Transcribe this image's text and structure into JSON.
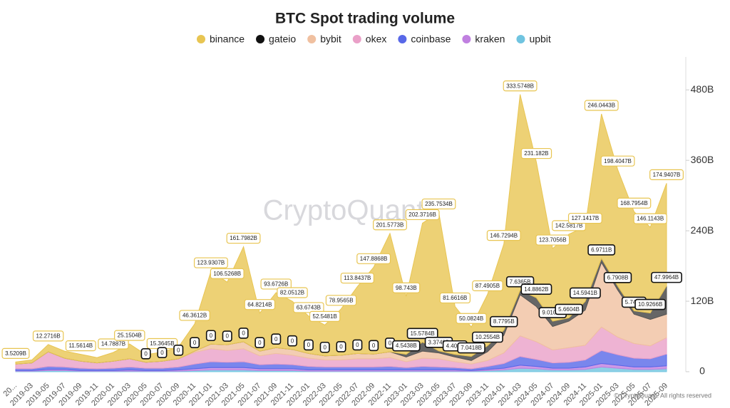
{
  "chart_data": {
    "type": "stacked-area",
    "title": "BTC Spot trading volume",
    "watermark": "CryptoQuant",
    "copyright": "© CryptoQuant. All rights reserved",
    "categories": [
      "20...",
      "2019-03",
      "2019-05",
      "2019-07",
      "2019-09",
      "2019-11",
      "2020-01",
      "2020-03",
      "2020-05",
      "2020-07",
      "2020-09",
      "2020-11",
      "2021-01",
      "2021-03",
      "2021-05",
      "2021-07",
      "2021-09",
      "2021-11",
      "2022-01",
      "2022-03",
      "2022-05",
      "2022-07",
      "2022-09",
      "2022-11",
      "2023-01",
      "2023-03",
      "2023-05",
      "2023-07",
      "2023-09",
      "2023-11",
      "2024-01",
      "2024-03",
      "2024-05",
      "2024-07",
      "2024-09",
      "2024-11",
      "2025-01",
      "2025-03",
      "2025-05",
      "2025-07",
      "2025-09"
    ],
    "ylim": [
      0,
      530
    ],
    "yticks": [
      0,
      {
        "value": 120,
        "label": "120B"
      },
      {
        "value": 240,
        "label": "240B"
      },
      {
        "value": 360,
        "label": "360B"
      },
      {
        "value": 480,
        "label": "480B"
      }
    ],
    "grid": false,
    "legend": "top",
    "series": [
      {
        "name": "binance",
        "color": "#e8c552",
        "values": [
          3.5209,
          5,
          12.2716,
          12,
          11.5614,
          9,
          14.7887,
          25.1504,
          13,
          15.3645,
          20,
          46.3612,
          123.9307,
          106.5268,
          161.7982,
          64.8214,
          93.6726,
          82.0512,
          63.6743,
          52.5481,
          78.9565,
          113.8437,
          147.8868,
          201.5773,
          98.743,
          202.3716,
          235.7534,
          81.6616,
          50.0824,
          87.4905,
          146.7294,
          333.5748,
          231.182,
          123.7056,
          142.5817,
          127.1417,
          246.0443,
          198.4047,
          168.7954,
          146.1143,
          174.9407
        ],
        "value_labels": [
          "3.5209B",
          null,
          "12.2716B",
          null,
          "11.5614B",
          null,
          "14.7887B",
          "25.1504B",
          null,
          "15.3645B",
          null,
          "46.3612B",
          "123.9307B",
          "106.5268B",
          "161.7982B",
          "64.8214B",
          "93.6726B",
          "82.0512B",
          "63.6743B",
          "52.5481B",
          "78.9565B",
          "113.8437B",
          "147.8868B",
          "201.5773B",
          "98.743B",
          "202.3716B",
          "235.7534B",
          "81.6616B",
          "50.0824B",
          "87.4905B",
          "146.7294B",
          "333.5748B",
          "231.182B",
          "123.7056B",
          "142.5817B",
          "127.1417B",
          "246.0443B",
          "198.4047B",
          "168.7954B",
          "146.1143B",
          "174.9407B"
        ]
      },
      {
        "name": "gateio",
        "color": "#111111",
        "values": [
          0,
          0,
          0,
          0,
          0,
          0,
          0,
          0,
          0,
          0,
          0,
          0,
          0,
          0,
          0,
          0,
          0,
          0,
          0,
          0,
          0,
          0,
          0,
          0,
          4.5438,
          15.5784,
          3.3749,
          4.406,
          7.0418,
          10.2554,
          8.7795,
          7.6365,
          14.8862,
          9.0104,
          5.6604,
          14.5941,
          6.9711,
          6.7908,
          5.747,
          10.9266,
          47.9964
        ],
        "value_labels": [
          null,
          null,
          null,
          null,
          null,
          null,
          null,
          null,
          "0",
          "0",
          "0",
          "0",
          "0",
          "0",
          "0",
          "0",
          "0",
          "0",
          "0",
          "0",
          "0",
          "0",
          "0",
          "0",
          "4.5438B",
          "15.5784B",
          "3.3749B",
          "4.406B",
          "7.0418B",
          "10.2554B",
          "8.7795B",
          "7.6365B",
          "14.8862B",
          "9.0104B",
          "5.6604B",
          "14.5941B",
          "6.9711B",
          "6.7908B",
          "5.747B",
          "10.9266B",
          "47.9964B"
        ]
      },
      {
        "name": "bybit",
        "color": "#f0c0a0",
        "values": [
          0,
          0,
          0,
          0,
          0,
          0,
          0,
          0,
          0,
          0,
          0,
          2,
          8,
          10,
          12,
          8,
          10,
          10,
          8,
          7,
          8,
          9,
          8,
          10,
          8,
          12,
          10,
          8,
          6,
          15,
          30,
          70,
          60,
          40,
          45,
          60,
          110,
          80,
          50,
          45,
          40
        ]
      },
      {
        "name": "okex",
        "color": "#eaa0c8",
        "values": [
          8,
          10,
          25,
          15,
          12,
          10,
          12,
          14,
          10,
          12,
          14,
          20,
          22,
          20,
          22,
          15,
          18,
          16,
          14,
          12,
          12,
          14,
          14,
          15,
          10,
          14,
          14,
          10,
          8,
          10,
          18,
          35,
          30,
          22,
          25,
          25,
          40,
          30,
          25,
          22,
          28
        ]
      },
      {
        "name": "coinbase",
        "color": "#5868e8",
        "values": [
          3,
          3,
          5,
          4,
          4,
          3,
          4,
          5,
          4,
          4,
          5,
          8,
          10,
          9,
          10,
          7,
          8,
          7,
          6,
          5,
          5,
          5,
          5,
          6,
          4,
          6,
          5,
          4,
          3,
          5,
          8,
          15,
          12,
          9,
          10,
          12,
          22,
          18,
          15,
          14,
          20
        ]
      },
      {
        "name": "kraken",
        "color": "#c080e0",
        "values": [
          1,
          1,
          2,
          2,
          1,
          1,
          1,
          2,
          1,
          1,
          2,
          3,
          4,
          4,
          4,
          3,
          3,
          3,
          2,
          2,
          2,
          2,
          2,
          2,
          2,
          2,
          2,
          2,
          1,
          2,
          3,
          5,
          4,
          3,
          3,
          4,
          6,
          5,
          4,
          4,
          5
        ]
      },
      {
        "name": "upbit",
        "color": "#70c4e0",
        "values": [
          1,
          1,
          2,
          2,
          1,
          1,
          1,
          1,
          1,
          1,
          1,
          2,
          3,
          3,
          3,
          2,
          2,
          2,
          1,
          1,
          1,
          1,
          1,
          1,
          1,
          1,
          1,
          1,
          1,
          2,
          3,
          6,
          5,
          3,
          3,
          4,
          8,
          6,
          4,
          4,
          5
        ]
      }
    ]
  }
}
